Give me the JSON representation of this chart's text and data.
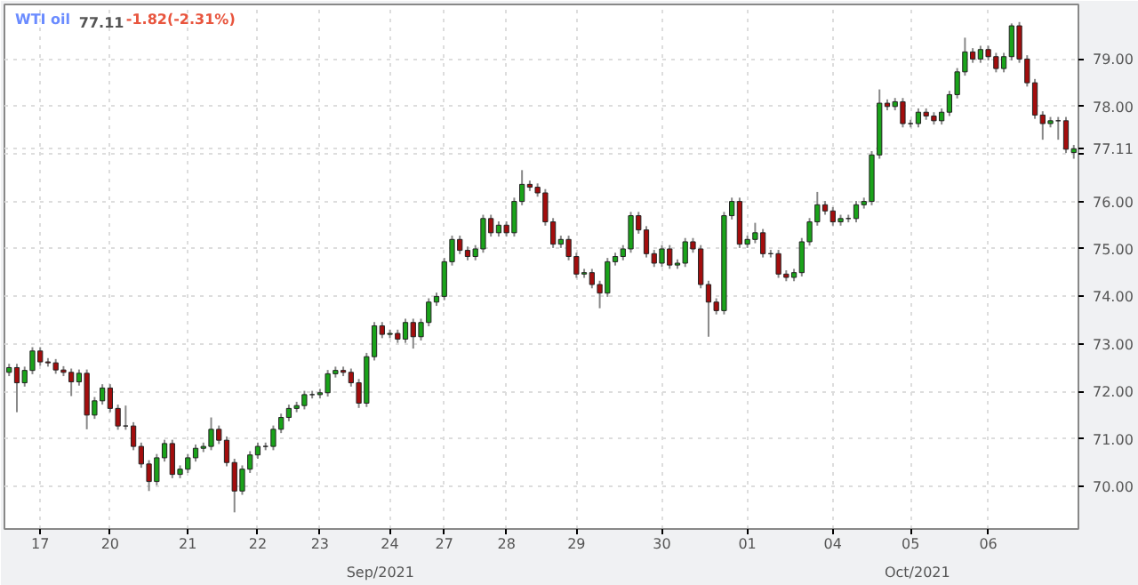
{
  "chart_data": {
    "type": "candlestick",
    "title": "WTI oil",
    "subtitle": "77.11",
    "annotations": [
      "-1.82(-2.31%)",
      "Sep/2021",
      "Oct/2021"
    ],
    "categories": [
      null,
      null,
      null,
      null,
      "17",
      null,
      null,
      null,
      null,
      null,
      null,
      null,
      null,
      "20",
      null,
      null,
      null,
      null,
      null,
      null,
      null,
      null,
      null,
      "21",
      null,
      null,
      null,
      null,
      null,
      null,
      null,
      null,
      "22",
      null,
      null,
      null,
      null,
      null,
      null,
      null,
      "23",
      null,
      null,
      null,
      null,
      null,
      null,
      null,
      null,
      "24",
      null,
      null,
      null,
      null,
      null,
      null,
      "27",
      null,
      null,
      null,
      null,
      null,
      null,
      null,
      "28",
      null,
      null,
      null,
      null,
      null,
      null,
      null,
      null,
      "29",
      null,
      null,
      null,
      null,
      null,
      null,
      null,
      null,
      null,
      null,
      "30",
      null,
      null,
      null,
      null,
      null,
      null,
      null,
      null,
      null,
      null,
      "01",
      null,
      null,
      null,
      null,
      null,
      null,
      null,
      null,
      null,
      null,
      "04",
      null,
      null,
      null,
      null,
      null,
      null,
      null,
      null,
      null,
      "05",
      null,
      null,
      null,
      null,
      null,
      null,
      null,
      null,
      null,
      "06",
      null,
      null,
      null,
      null,
      null,
      null,
      null,
      null,
      null,
      null,
      null
    ],
    "ohlc": [
      [
        72.4,
        72.58,
        72.32,
        72.5
      ],
      [
        72.5,
        72.58,
        71.56,
        72.18
      ],
      [
        72.18,
        72.52,
        72.1,
        72.44
      ],
      [
        72.44,
        72.93,
        72.36,
        72.85
      ],
      [
        72.85,
        72.93,
        72.54,
        72.62
      ],
      [
        72.62,
        72.7,
        72.52,
        72.6
      ],
      [
        72.6,
        72.68,
        72.37,
        72.45
      ],
      [
        72.45,
        72.53,
        72.32,
        72.4
      ],
      [
        72.4,
        72.48,
        71.9,
        72.2
      ],
      [
        72.2,
        72.46,
        72.12,
        72.38
      ],
      [
        72.38,
        72.46,
        71.2,
        71.5
      ],
      [
        71.5,
        71.88,
        71.42,
        71.8
      ],
      [
        71.8,
        72.15,
        71.72,
        72.07
      ],
      [
        72.07,
        72.15,
        71.56,
        71.64
      ],
      [
        71.64,
        71.72,
        71.19,
        71.27
      ],
      [
        71.27,
        71.7,
        71.19,
        71.27
      ],
      [
        71.27,
        71.35,
        70.76,
        70.84
      ],
      [
        70.84,
        70.92,
        70.39,
        70.47
      ],
      [
        70.47,
        70.55,
        69.9,
        70.1
      ],
      [
        70.1,
        70.68,
        70.02,
        70.6
      ],
      [
        70.6,
        70.98,
        70.52,
        70.9
      ],
      [
        70.9,
        70.98,
        70.17,
        70.25
      ],
      [
        70.25,
        70.44,
        70.17,
        70.36
      ],
      [
        70.36,
        70.68,
        70.28,
        70.6
      ],
      [
        70.6,
        70.88,
        70.52,
        70.8
      ],
      [
        70.8,
        70.92,
        70.72,
        70.84
      ],
      [
        70.84,
        71.45,
        70.76,
        71.2
      ],
      [
        71.2,
        71.28,
        70.89,
        70.97
      ],
      [
        70.97,
        71.05,
        70.42,
        70.5
      ],
      [
        70.5,
        70.58,
        69.45,
        69.9
      ],
      [
        69.9,
        70.44,
        69.82,
        70.36
      ],
      [
        70.36,
        70.74,
        70.28,
        70.66
      ],
      [
        70.66,
        70.92,
        70.58,
        70.84
      ],
      [
        70.84,
        70.92,
        70.76,
        70.84
      ],
      [
        70.84,
        71.28,
        70.76,
        71.2
      ],
      [
        71.2,
        71.53,
        71.12,
        71.45
      ],
      [
        71.45,
        71.72,
        71.37,
        71.64
      ],
      [
        71.64,
        71.78,
        71.56,
        71.7
      ],
      [
        71.7,
        72.01,
        71.62,
        71.93
      ],
      [
        71.93,
        72.01,
        71.85,
        71.93
      ],
      [
        71.93,
        72.05,
        71.85,
        71.97
      ],
      [
        71.97,
        72.45,
        71.89,
        72.37
      ],
      [
        72.37,
        72.52,
        72.29,
        72.44
      ],
      [
        72.44,
        72.52,
        72.32,
        72.4
      ],
      [
        72.4,
        72.48,
        72.1,
        72.18
      ],
      [
        72.18,
        72.26,
        71.65,
        71.75
      ],
      [
        71.75,
        72.81,
        71.67,
        72.73
      ],
      [
        72.73,
        73.46,
        72.65,
        73.38
      ],
      [
        73.38,
        73.46,
        73.12,
        73.2
      ],
      [
        73.2,
        73.3,
        73.12,
        73.22
      ],
      [
        73.22,
        73.3,
        73.02,
        73.1
      ],
      [
        73.1,
        73.53,
        73.02,
        73.45
      ],
      [
        73.45,
        73.53,
        72.9,
        73.15
      ],
      [
        73.15,
        73.53,
        73.07,
        73.45
      ],
      [
        73.45,
        73.96,
        73.37,
        73.88
      ],
      [
        73.88,
        74.08,
        73.8,
        74.0
      ],
      [
        74.0,
        74.81,
        73.92,
        74.73
      ],
      [
        74.73,
        75.28,
        74.65,
        75.2
      ],
      [
        75.2,
        75.28,
        74.89,
        74.97
      ],
      [
        74.97,
        75.05,
        74.76,
        74.84
      ],
      [
        74.84,
        75.08,
        74.76,
        75.0
      ],
      [
        75.0,
        75.72,
        74.92,
        75.64
      ],
      [
        75.64,
        75.72,
        75.26,
        75.34
      ],
      [
        75.34,
        75.58,
        75.26,
        75.5
      ],
      [
        75.5,
        75.58,
        75.26,
        75.34
      ],
      [
        75.34,
        76.08,
        75.26,
        76.0
      ],
      [
        76.0,
        76.66,
        75.92,
        76.36
      ],
      [
        76.36,
        76.44,
        76.22,
        76.3
      ],
      [
        76.3,
        76.38,
        76.1,
        76.18
      ],
      [
        76.18,
        76.26,
        75.49,
        75.57
      ],
      [
        75.57,
        75.65,
        75.02,
        75.1
      ],
      [
        75.1,
        75.28,
        75.02,
        75.2
      ],
      [
        75.2,
        75.28,
        74.76,
        74.84
      ],
      [
        74.84,
        74.92,
        74.39,
        74.47
      ],
      [
        74.47,
        74.58,
        74.39,
        74.5
      ],
      [
        74.5,
        74.58,
        74.17,
        74.25
      ],
      [
        74.25,
        74.33,
        73.75,
        74.07
      ],
      [
        74.07,
        74.81,
        73.99,
        74.73
      ],
      [
        74.73,
        74.92,
        74.65,
        74.84
      ],
      [
        74.84,
        75.08,
        74.76,
        75.0
      ],
      [
        75.0,
        75.78,
        74.92,
        75.7
      ],
      [
        75.7,
        75.78,
        75.32,
        75.4
      ],
      [
        75.4,
        75.48,
        74.82,
        74.9
      ],
      [
        74.9,
        74.98,
        74.62,
        74.7
      ],
      [
        74.7,
        75.08,
        74.62,
        75.0
      ],
      [
        75.0,
        75.08,
        74.58,
        74.66
      ],
      [
        74.66,
        74.78,
        74.58,
        74.7
      ],
      [
        74.7,
        75.23,
        74.62,
        75.15
      ],
      [
        75.15,
        75.23,
        74.92,
        75.0
      ],
      [
        75.0,
        75.08,
        74.17,
        74.25
      ],
      [
        74.25,
        74.33,
        73.15,
        73.88
      ],
      [
        73.88,
        73.96,
        73.62,
        73.7
      ],
      [
        73.7,
        75.78,
        73.62,
        75.7
      ],
      [
        75.7,
        76.08,
        75.62,
        76.0
      ],
      [
        76.0,
        76.08,
        75.02,
        75.1
      ],
      [
        75.1,
        75.28,
        75.02,
        75.2
      ],
      [
        75.2,
        75.55,
        75.12,
        75.34
      ],
      [
        75.34,
        75.42,
        74.82,
        74.9
      ],
      [
        74.9,
        74.98,
        74.82,
        74.9
      ],
      [
        74.9,
        74.98,
        74.39,
        74.47
      ],
      [
        74.47,
        74.55,
        74.32,
        74.4
      ],
      [
        74.4,
        74.58,
        74.32,
        74.5
      ],
      [
        74.5,
        75.23,
        74.42,
        75.15
      ],
      [
        75.15,
        75.65,
        75.07,
        75.57
      ],
      [
        75.57,
        76.2,
        75.49,
        75.93
      ],
      [
        75.93,
        76.01,
        75.72,
        75.8
      ],
      [
        75.8,
        75.88,
        75.49,
        75.57
      ],
      [
        75.57,
        75.72,
        75.49,
        75.64
      ],
      [
        75.64,
        75.72,
        75.56,
        75.64
      ],
      [
        75.64,
        76.01,
        75.56,
        75.93
      ],
      [
        75.93,
        76.08,
        75.85,
        76.0
      ],
      [
        76.0,
        77.06,
        75.92,
        76.98
      ],
      [
        76.98,
        78.36,
        76.9,
        78.07
      ],
      [
        78.07,
        78.15,
        77.92,
        78.0
      ],
      [
        78.0,
        78.18,
        77.92,
        78.1
      ],
      [
        78.1,
        78.18,
        77.56,
        77.64
      ],
      [
        77.64,
        77.72,
        77.56,
        77.64
      ],
      [
        77.64,
        77.96,
        77.56,
        77.88
      ],
      [
        77.88,
        77.96,
        77.72,
        77.8
      ],
      [
        77.8,
        77.88,
        77.62,
        77.7
      ],
      [
        77.7,
        77.96,
        77.62,
        77.88
      ],
      [
        77.88,
        78.33,
        77.8,
        78.25
      ],
      [
        78.25,
        78.81,
        78.17,
        78.73
      ],
      [
        78.73,
        79.45,
        78.65,
        79.15
      ],
      [
        79.15,
        79.23,
        78.92,
        79.0
      ],
      [
        79.0,
        79.28,
        78.92,
        79.2
      ],
      [
        79.2,
        79.28,
        78.97,
        79.05
      ],
      [
        79.05,
        79.13,
        78.72,
        78.8
      ],
      [
        78.8,
        79.13,
        78.72,
        79.05
      ],
      [
        79.05,
        79.75,
        78.97,
        79.7
      ],
      [
        79.7,
        79.78,
        78.92,
        79.0
      ],
      [
        79.0,
        79.08,
        78.42,
        78.5
      ],
      [
        78.5,
        78.58,
        77.74,
        77.82
      ],
      [
        77.82,
        77.9,
        77.3,
        77.64
      ],
      [
        77.64,
        77.78,
        77.56,
        77.7
      ],
      [
        77.7,
        77.78,
        77.3,
        77.7
      ],
      [
        77.7,
        77.78,
        77.02,
        77.1
      ],
      [
        77.03,
        77.19,
        76.9,
        77.11
      ]
    ],
    "ylim": [
      69.1,
      80.15
    ],
    "yticks": [
      {
        "value": 70,
        "label": "70.00"
      },
      {
        "value": 71,
        "label": "71.00"
      },
      {
        "value": 72,
        "label": "72.00"
      },
      {
        "value": 73,
        "label": "73.00"
      },
      {
        "value": 74,
        "label": "74.00"
      },
      {
        "value": 75,
        "label": "75.00"
      },
      {
        "value": 76,
        "label": "76.00"
      },
      {
        "value": 77,
        "label": null
      },
      {
        "value": 77.11,
        "label": "77.11"
      },
      {
        "value": 78,
        "label": "78.00"
      },
      {
        "value": 79,
        "label": "79.00"
      }
    ],
    "grid": true
  }
}
